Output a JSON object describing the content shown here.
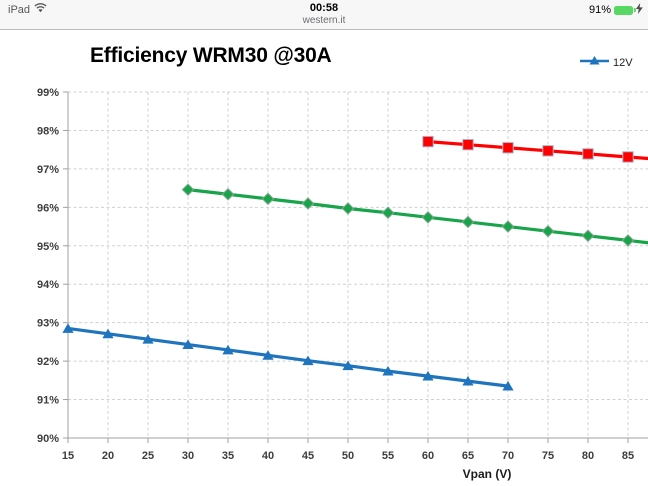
{
  "status_bar": {
    "carrier": "iPad",
    "time": "00:58",
    "site": "western.it",
    "battery_percent": "91%",
    "battery_color": "#57d763",
    "icons": [
      "wifi-icon",
      "battery-icon",
      "charging-bolt-icon"
    ]
  },
  "chart_data": {
    "type": "line",
    "title": "Efficiency WRM30 @30A",
    "xlabel": "Vpan (V)",
    "ylabel": "",
    "xlim": [
      15,
      87.5
    ],
    "ylim": [
      90,
      99
    ],
    "grid": "dashed",
    "legend_position": "top-right",
    "x_ticks": [
      15,
      20,
      25,
      30,
      35,
      40,
      45,
      50,
      55,
      60,
      65,
      70,
      75,
      80,
      85
    ],
    "y_tick_values": [
      99,
      98,
      97,
      96,
      95,
      94,
      93,
      92,
      91,
      90
    ],
    "y_tick_labels": [
      "99%",
      "98%",
      "97%",
      "96%",
      "95%",
      "94%",
      "93%",
      "92%",
      "91%",
      "90%"
    ],
    "legend": [
      {
        "label": "12V",
        "color": "#1f74be",
        "marker": "triangle"
      }
    ],
    "series": [
      {
        "name": "12V",
        "marker": "triangle",
        "color": "#1f74be",
        "marker_border": "",
        "extends_beyond_right": false,
        "x": [
          15,
          20,
          25,
          30,
          35,
          40,
          45,
          50,
          55,
          60,
          65,
          70
        ],
        "y": [
          92.85,
          92.71,
          92.57,
          92.43,
          92.29,
          92.15,
          92.01,
          91.88,
          91.74,
          91.61,
          91.48,
          91.35
        ]
      },
      {
        "name": "",
        "marker": "diamond",
        "color": "#18a54a",
        "marker_border": "#87a593",
        "extends_beyond_right": true,
        "x": [
          30,
          35,
          40,
          45,
          50,
          55,
          60,
          65,
          70,
          75,
          80,
          85
        ],
        "y": [
          96.46,
          96.34,
          96.22,
          96.1,
          95.97,
          95.86,
          95.74,
          95.62,
          95.5,
          95.38,
          95.26,
          95.14
        ]
      },
      {
        "name": "",
        "marker": "square",
        "color": "#fe0000",
        "marker_border": "#a9b6cb",
        "extends_beyond_right": true,
        "x": [
          60,
          65,
          70,
          75,
          80,
          85
        ],
        "y": [
          97.71,
          97.63,
          97.55,
          97.47,
          97.39,
          97.31
        ]
      }
    ]
  }
}
